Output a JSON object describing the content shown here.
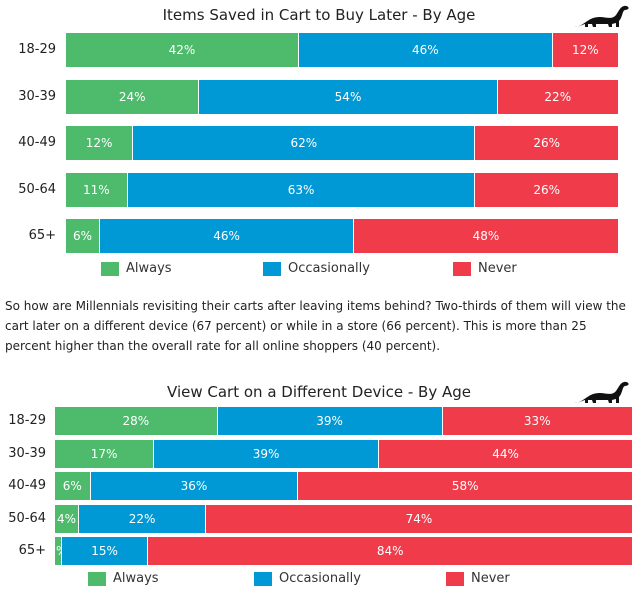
{
  "colors": {
    "always": "#4dbb6b",
    "occasionally": "#0099d6",
    "never": "#f03b4a"
  },
  "paragraph": "So how are Millennials revisiting their carts after leaving items behind? Two-thirds of them will view the cart later on a different device (67 percent) or while in a store (66 percent). This is more than 25 percent higher than the overall rate for all online shoppers (40 percent).",
  "chart_data": [
    {
      "type": "bar",
      "orientation": "horizontal",
      "stacked": true,
      "title": "Items Saved in Cart to Buy Later - By Age",
      "categories": [
        "18-29",
        "30-39",
        "40-49",
        "50-64",
        "65+"
      ],
      "series": [
        {
          "name": "Always",
          "values": [
            42,
            24,
            12,
            11,
            6
          ]
        },
        {
          "name": "Occasionally",
          "values": [
            46,
            54,
            62,
            63,
            46
          ]
        },
        {
          "name": "Never",
          "values": [
            12,
            22,
            26,
            26,
            48
          ]
        }
      ],
      "value_suffix": "%",
      "xlim": [
        0,
        100
      ],
      "legend": "bottom"
    },
    {
      "type": "bar",
      "orientation": "horizontal",
      "stacked": true,
      "title": "View Cart on a Different Device - By Age",
      "categories": [
        "18-29",
        "30-39",
        "40-49",
        "50-64",
        "65+"
      ],
      "series": [
        {
          "name": "Always",
          "values": [
            28,
            17,
            6,
            4,
            1
          ]
        },
        {
          "name": "Occasionally",
          "values": [
            39,
            39,
            36,
            22,
            15
          ]
        },
        {
          "name": "Never",
          "values": [
            33,
            44,
            58,
            74,
            84
          ]
        }
      ],
      "value_suffix": "%",
      "xlim": [
        0,
        100
      ],
      "legend": "bottom"
    }
  ]
}
